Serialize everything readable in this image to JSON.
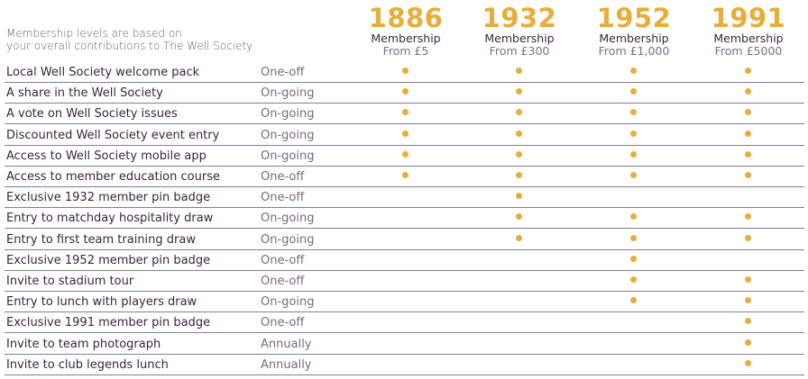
{
  "intro": {
    "line1": "Membership levels are based on",
    "line2": "your overall contributions to The Well Society"
  },
  "tiers": [
    {
      "year": "1886",
      "name": "Membership",
      "price": "From £5"
    },
    {
      "year": "1932",
      "name": "Membership",
      "price": "From £300"
    },
    {
      "year": "1952",
      "name": "Membership",
      "price": "From £1,000"
    },
    {
      "year": "1991",
      "name": "Membership",
      "price": "From £5000"
    }
  ],
  "colors": {
    "accent": "#e8ad3a",
    "text": "#3d2440",
    "rule": "#8a7a9a"
  },
  "rows": [
    {
      "label": "Local Well Society welcome pack",
      "freq": "One-off",
      "tiers": [
        true,
        true,
        true,
        true
      ]
    },
    {
      "label": "A share in the Well Society",
      "freq": "On-going",
      "tiers": [
        true,
        true,
        true,
        true
      ]
    },
    {
      "label": "A vote on Well Society issues",
      "freq": "On-going",
      "tiers": [
        true,
        true,
        true,
        true
      ]
    },
    {
      "label": "Discounted Well Society event entry",
      "freq": "On-going",
      "tiers": [
        true,
        true,
        true,
        true
      ]
    },
    {
      "label": "Access to Well Society mobile app",
      "freq": "On-going",
      "tiers": [
        true,
        true,
        true,
        true
      ]
    },
    {
      "label": "Access to member education course",
      "freq": "One-off",
      "tiers": [
        true,
        true,
        true,
        true
      ]
    },
    {
      "label": "Exclusive 1932 member pin badge",
      "freq": "One-off",
      "tiers": [
        false,
        true,
        false,
        false
      ]
    },
    {
      "label": "Entry to matchday hospitality draw",
      "freq": "On-going",
      "tiers": [
        false,
        true,
        true,
        true
      ]
    },
    {
      "label": "Entry to first team training draw",
      "freq": "On-going",
      "tiers": [
        false,
        true,
        true,
        true
      ]
    },
    {
      "label": "Exclusive 1952 member pin badge",
      "freq": "One-off",
      "tiers": [
        false,
        false,
        true,
        false
      ]
    },
    {
      "label": "Invite to stadium tour",
      "freq": "One-off",
      "tiers": [
        false,
        false,
        true,
        true
      ]
    },
    {
      "label": "Entry to lunch with players draw",
      "freq": "On-going",
      "tiers": [
        false,
        false,
        true,
        true
      ]
    },
    {
      "label": "Exclusive 1991 member pin badge",
      "freq": "One-off",
      "tiers": [
        false,
        false,
        false,
        true
      ]
    },
    {
      "label": "Invite to team photograph",
      "freq": "Annually",
      "tiers": [
        false,
        false,
        false,
        true
      ]
    },
    {
      "label": "Invite to club legends lunch",
      "freq": "Annually",
      "tiers": [
        false,
        false,
        false,
        true
      ]
    }
  ]
}
